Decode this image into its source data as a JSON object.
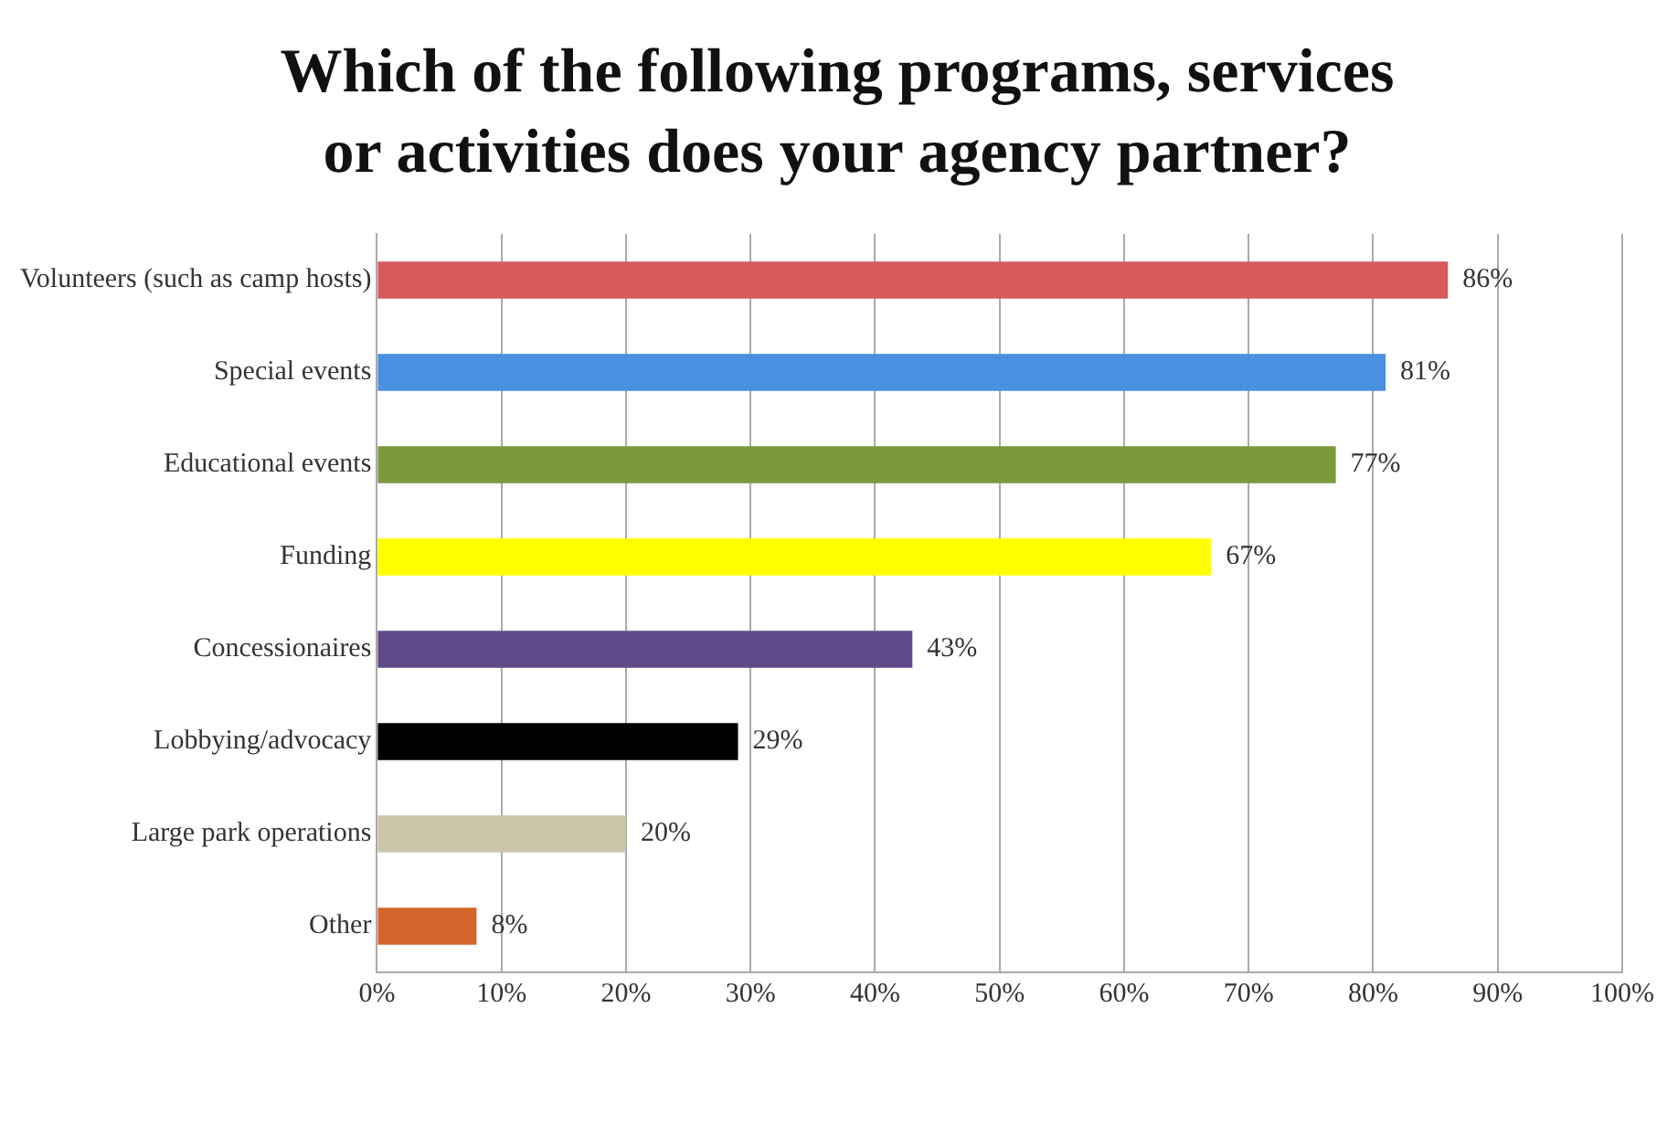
{
  "chart_data": {
    "type": "bar",
    "orientation": "horizontal",
    "title": "Which of the following programs, services or activities does your agency partner?",
    "categories": [
      "Volunteers (such as camp hosts)",
      "Special events",
      "Educational events",
      "Funding",
      "Concessionaires",
      "Lobbying/advocacy",
      "Large park operations",
      "Other"
    ],
    "values": [
      86,
      81,
      77,
      67,
      43,
      29,
      20,
      8
    ],
    "colors": [
      "#d65a5c",
      "#4a90e2",
      "#7a9a3c",
      "#ffff00",
      "#5e4b8c",
      "#000000",
      "#cbc5aa",
      "#d2642c"
    ],
    "value_labels": [
      "86%",
      "81%",
      "77%",
      "67%",
      "43%",
      "29%",
      "20%",
      "8%"
    ],
    "xlim": [
      0,
      100
    ],
    "xticks": [
      {
        "value": 0,
        "label": "0%"
      },
      {
        "value": 10,
        "label": "10%"
      },
      {
        "value": 20,
        "label": "20%"
      },
      {
        "value": 30,
        "label": "30%"
      },
      {
        "value": 40,
        "label": "40%"
      },
      {
        "value": 50,
        "label": "50%"
      },
      {
        "value": 60,
        "label": "60%"
      },
      {
        "value": 70,
        "label": "70%"
      },
      {
        "value": 80,
        "label": "80%"
      },
      {
        "value": 90,
        "label": "90%"
      },
      {
        "value": 100,
        "label": "100%"
      }
    ],
    "grid": "x",
    "legend": false
  }
}
